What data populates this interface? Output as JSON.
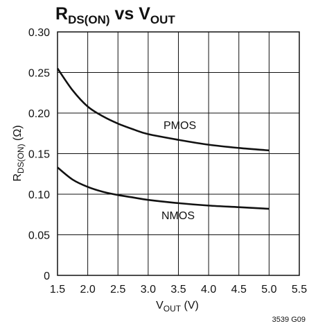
{
  "chart_data": {
    "type": "line",
    "title": {
      "main1": "R",
      "sub1": "DS(ON)",
      "mid": " vs V",
      "sub2": "OUT"
    },
    "xlabel": {
      "main": "V",
      "sub": "OUT",
      "unit": " (V)"
    },
    "ylabel": {
      "main": "R",
      "sub": "DS(ON)",
      "unit": " (Ω)"
    },
    "xlim": [
      1.5,
      5.5
    ],
    "ylim": [
      0,
      0.3
    ],
    "xticks": [
      "1.5",
      "2.0",
      "2.5",
      "3.0",
      "3.5",
      "4.0",
      "4.5",
      "5.0",
      "5.5"
    ],
    "yticks": [
      "0",
      "0.05",
      "0.10",
      "0.15",
      "0.20",
      "0.25",
      "0.30"
    ],
    "grid": true,
    "series": [
      {
        "name": "PMOS",
        "x": [
          1.5,
          1.75,
          2.0,
          2.25,
          2.5,
          2.75,
          3.0,
          3.5,
          4.0,
          4.5,
          5.0
        ],
        "y": [
          0.255,
          0.228,
          0.208,
          0.196,
          0.187,
          0.18,
          0.174,
          0.167,
          0.161,
          0.157,
          0.154
        ]
      },
      {
        "name": "NMOS",
        "x": [
          1.5,
          1.75,
          2.0,
          2.25,
          2.5,
          2.75,
          3.0,
          3.5,
          4.0,
          4.5,
          5.0
        ],
        "y": [
          0.133,
          0.118,
          0.109,
          0.103,
          0.099,
          0.096,
          0.093,
          0.089,
          0.086,
          0.084,
          0.082
        ]
      }
    ],
    "figure_id": "3539 G09"
  }
}
